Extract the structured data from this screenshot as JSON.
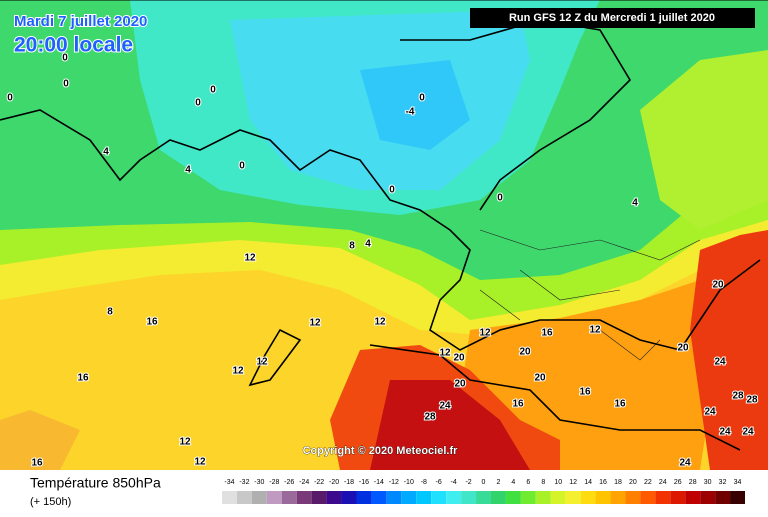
{
  "title_date": "Mardi 7 juillet 2020",
  "title_time": "20:00 locale",
  "run": "Run GFS 12 Z du Mercredi 1 juillet 2020",
  "copyright": "Copyright © 2020 Meteociel.fr",
  "footer": {
    "field": "Température 850hPa",
    "lead": "(+ 150h)"
  },
  "colorbar": {
    "ticks": [
      -34,
      -32,
      -30,
      -28,
      -26,
      -24,
      -22,
      -20,
      -18,
      -16,
      -14,
      -12,
      -10,
      -8,
      -6,
      -4,
      -2,
      0,
      2,
      4,
      6,
      8,
      10,
      12,
      14,
      16,
      18,
      20,
      22,
      24,
      26,
      28,
      30,
      32,
      34
    ],
    "colors": [
      "#e0e0e0",
      "#c8c8c8",
      "#b0b0b0",
      "#c09ac0",
      "#9a6a9a",
      "#7a3a7a",
      "#5a1a6a",
      "#3c0a8c",
      "#1a10b4",
      "#0030e0",
      "#0058ff",
      "#0088ff",
      "#00aaff",
      "#00c8ff",
      "#20e0ff",
      "#40eef0",
      "#40e6c8",
      "#38dc98",
      "#30d46a",
      "#40e040",
      "#70ec30",
      "#a8f028",
      "#d4f428",
      "#f4f030",
      "#ffdc10",
      "#ffc400",
      "#ffa400",
      "#ff8000",
      "#ff5a00",
      "#f23200",
      "#dc1800",
      "#c00000",
      "#9c0000",
      "#700000",
      "#380000"
    ]
  },
  "contour_labels": [
    0,
    0,
    0,
    0,
    0,
    0,
    -4,
    4,
    4,
    0,
    0,
    0,
    4,
    8,
    4,
    12,
    8,
    16,
    12,
    12,
    12,
    16,
    12,
    16,
    12,
    12,
    12,
    20,
    20,
    20,
    20,
    28,
    24,
    16,
    16,
    16,
    20,
    20,
    24,
    28,
    28,
    24,
    24,
    24,
    12,
    12,
    24,
    16
  ]
}
